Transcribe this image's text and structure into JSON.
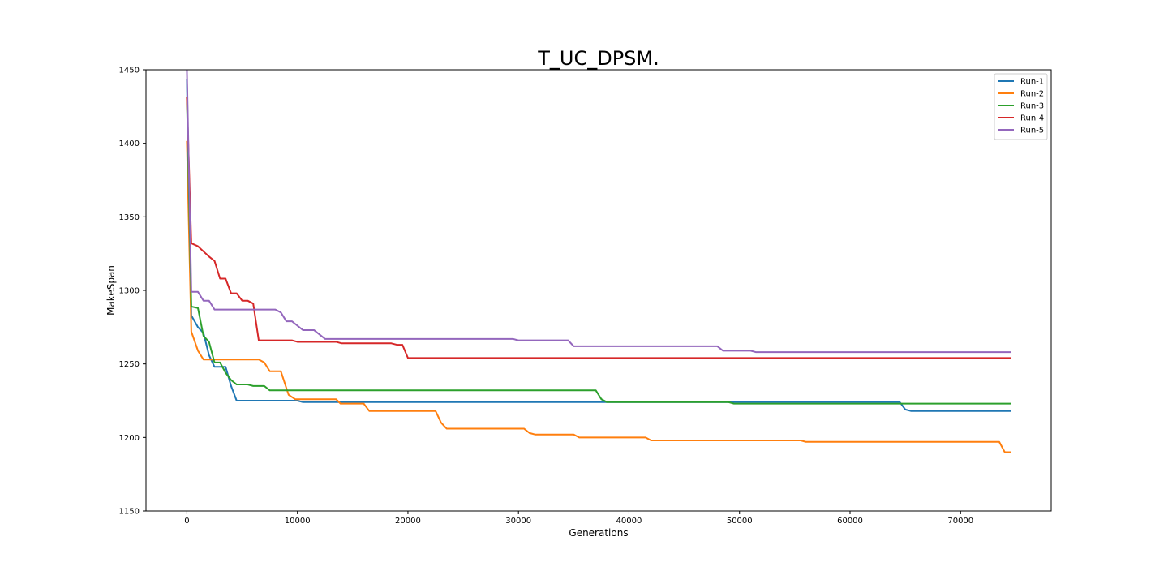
{
  "chart_data": {
    "type": "line",
    "title": "T_UC_DPSM.",
    "xlabel": "Generations",
    "ylabel": "MakeSpan",
    "xlim": [
      -3700,
      78200
    ],
    "ylim": [
      1150,
      1450
    ],
    "xticks": [
      0,
      10000,
      20000,
      30000,
      40000,
      50000,
      60000,
      70000
    ],
    "xtick_labels": [
      "0",
      "10000",
      "20000",
      "30000",
      "40000",
      "50000",
      "60000",
      "70000"
    ],
    "yticks": [
      1150,
      1200,
      1250,
      1300,
      1350,
      1400,
      1450
    ],
    "ytick_labels": [
      "1150",
      "1200",
      "1250",
      "1300",
      "1350",
      "1400",
      "1450"
    ],
    "grid": false,
    "legend_position": "top-right",
    "series": [
      {
        "name": "Run-1",
        "color": "#1f77b4",
        "points": [
          [
            0,
            1443
          ],
          [
            400,
            1283
          ],
          [
            1000,
            1275
          ],
          [
            1500,
            1271
          ],
          [
            2000,
            1256
          ],
          [
            2500,
            1248
          ],
          [
            3000,
            1248
          ],
          [
            3500,
            1248
          ],
          [
            4000,
            1235
          ],
          [
            4500,
            1225
          ],
          [
            10000,
            1225
          ],
          [
            10500,
            1224
          ],
          [
            64500,
            1224
          ],
          [
            65000,
            1219
          ],
          [
            65500,
            1218
          ],
          [
            74500,
            1218
          ]
        ]
      },
      {
        "name": "Run-2",
        "color": "#ff7f0e",
        "points": [
          [
            0,
            1401
          ],
          [
            400,
            1272
          ],
          [
            1000,
            1259
          ],
          [
            1500,
            1253
          ],
          [
            6500,
            1253
          ],
          [
            7000,
            1251
          ],
          [
            7500,
            1245
          ],
          [
            8500,
            1245
          ],
          [
            9200,
            1229
          ],
          [
            9800,
            1226
          ],
          [
            13500,
            1226
          ],
          [
            13900,
            1223
          ],
          [
            16000,
            1223
          ],
          [
            16500,
            1218
          ],
          [
            22500,
            1218
          ],
          [
            23000,
            1210
          ],
          [
            23500,
            1206
          ],
          [
            30500,
            1206
          ],
          [
            31000,
            1203
          ],
          [
            31500,
            1202
          ],
          [
            35000,
            1202
          ],
          [
            35500,
            1200
          ],
          [
            41500,
            1200
          ],
          [
            42000,
            1198
          ],
          [
            55500,
            1198
          ],
          [
            56000,
            1197
          ],
          [
            73500,
            1197
          ],
          [
            74000,
            1190
          ],
          [
            74500,
            1190
          ]
        ]
      },
      {
        "name": "Run-3",
        "color": "#2ca02c",
        "points": [
          [
            0,
            1431
          ],
          [
            400,
            1289
          ],
          [
            1000,
            1288
          ],
          [
            1500,
            1269
          ],
          [
            2000,
            1265
          ],
          [
            2500,
            1251
          ],
          [
            3000,
            1251
          ],
          [
            3500,
            1244
          ],
          [
            4000,
            1239
          ],
          [
            4500,
            1236
          ],
          [
            5500,
            1236
          ],
          [
            6000,
            1235
          ],
          [
            7000,
            1235
          ],
          [
            7500,
            1232
          ],
          [
            37000,
            1232
          ],
          [
            37500,
            1226
          ],
          [
            38000,
            1224
          ],
          [
            49000,
            1224
          ],
          [
            49500,
            1223
          ],
          [
            74500,
            1223
          ]
        ]
      },
      {
        "name": "Run-4",
        "color": "#d62728",
        "points": [
          [
            0,
            1431
          ],
          [
            400,
            1332
          ],
          [
            1000,
            1330
          ],
          [
            2000,
            1323
          ],
          [
            2500,
            1320
          ],
          [
            3000,
            1308
          ],
          [
            3500,
            1308
          ],
          [
            4000,
            1298
          ],
          [
            4500,
            1298
          ],
          [
            5000,
            1293
          ],
          [
            5500,
            1293
          ],
          [
            6000,
            1291
          ],
          [
            6500,
            1266
          ],
          [
            9500,
            1266
          ],
          [
            10000,
            1265
          ],
          [
            13500,
            1265
          ],
          [
            14000,
            1264
          ],
          [
            18500,
            1264
          ],
          [
            19000,
            1263
          ],
          [
            19500,
            1263
          ],
          [
            20000,
            1254
          ],
          [
            74500,
            1254
          ]
        ]
      },
      {
        "name": "Run-5",
        "color": "#9467bd",
        "points": [
          [
            0,
            1450
          ],
          [
            400,
            1299
          ],
          [
            1000,
            1299
          ],
          [
            1500,
            1293
          ],
          [
            2000,
            1293
          ],
          [
            2500,
            1287
          ],
          [
            8000,
            1287
          ],
          [
            8500,
            1285
          ],
          [
            9000,
            1279
          ],
          [
            9500,
            1279
          ],
          [
            10000,
            1276
          ],
          [
            10500,
            1273
          ],
          [
            11500,
            1273
          ],
          [
            12500,
            1267
          ],
          [
            29500,
            1267
          ],
          [
            30000,
            1266
          ],
          [
            34500,
            1266
          ],
          [
            35000,
            1262
          ],
          [
            48000,
            1262
          ],
          [
            48500,
            1259
          ],
          [
            51000,
            1259
          ],
          [
            51500,
            1258
          ],
          [
            74500,
            1258
          ]
        ]
      }
    ]
  }
}
